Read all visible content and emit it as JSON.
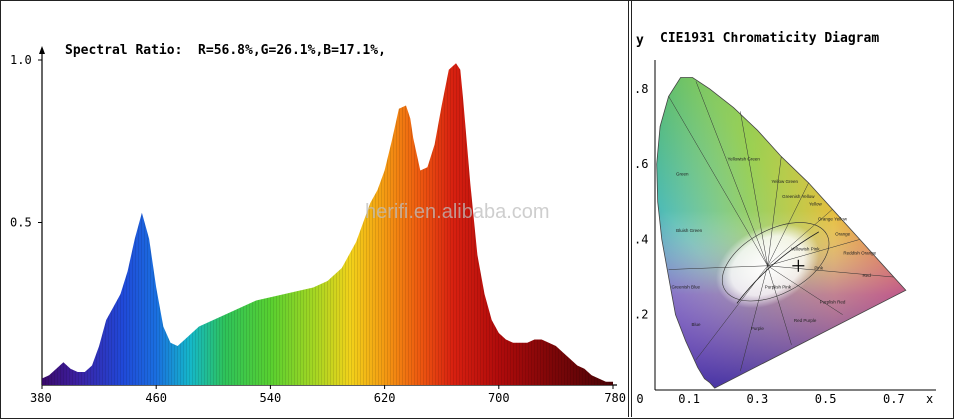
{
  "chart_data": [
    {
      "type": "area",
      "title": "",
      "annotation": "Spectral Ratio:  R=56.8%,G=26.1%,B=17.1%,",
      "xlabel": "",
      "ylabel": "",
      "xlim": [
        380,
        780
      ],
      "ylim": [
        0,
        1.0
      ],
      "x_ticks": [
        "380",
        "460",
        "540",
        "620",
        "700",
        "780"
      ],
      "y_ticks": [
        "0.5",
        "1.0"
      ],
      "fill": "wavelength-colored spectrum",
      "series": [
        {
          "x": [
            380,
            385,
            390,
            395,
            400,
            405,
            410,
            415,
            420,
            425,
            430,
            435,
            440,
            445,
            450,
            455,
            460,
            465,
            470,
            475,
            480,
            485,
            490,
            495,
            500,
            510,
            520,
            530,
            540,
            550,
            560,
            570,
            580,
            590,
            600,
            605,
            610,
            615,
            620,
            625,
            630,
            635,
            638,
            640,
            645,
            650,
            655,
            660,
            665,
            670,
            673,
            675,
            680,
            685,
            690,
            695,
            700,
            705,
            710,
            715,
            720,
            725,
            730,
            735,
            740,
            745,
            750,
            755,
            760,
            765,
            770,
            775,
            780
          ],
          "values": [
            0.02,
            0.03,
            0.05,
            0.07,
            0.05,
            0.04,
            0.04,
            0.06,
            0.12,
            0.2,
            0.24,
            0.28,
            0.35,
            0.45,
            0.53,
            0.45,
            0.3,
            0.18,
            0.13,
            0.12,
            0.14,
            0.16,
            0.18,
            0.19,
            0.2,
            0.22,
            0.24,
            0.26,
            0.27,
            0.28,
            0.29,
            0.3,
            0.32,
            0.36,
            0.44,
            0.5,
            0.56,
            0.6,
            0.66,
            0.75,
            0.85,
            0.86,
            0.82,
            0.76,
            0.66,
            0.67,
            0.74,
            0.86,
            0.97,
            0.99,
            0.97,
            0.88,
            0.62,
            0.4,
            0.28,
            0.2,
            0.16,
            0.14,
            0.13,
            0.13,
            0.13,
            0.14,
            0.14,
            0.13,
            0.12,
            0.1,
            0.08,
            0.06,
            0.05,
            0.03,
            0.02,
            0.01,
            0.01
          ]
        }
      ],
      "watermark": "herifi.en.alibaba.com"
    },
    {
      "type": "scatter",
      "title": "CIE1931 Chromaticity Diagram",
      "xlabel": "x",
      "ylabel": "y",
      "xlim": [
        0,
        0.8
      ],
      "ylim": [
        0,
        0.85
      ],
      "x_ticks": [
        "0",
        "0.1",
        "0.3",
        "0.5",
        "0.7"
      ],
      "y_ticks": [
        ".2",
        ".4",
        ".6",
        ".8"
      ],
      "region_labels": [
        "Yellowish Green",
        "Green",
        "Yellow Green",
        "Greenish Yellow",
        "Yellow",
        "Orange Yellow",
        "Orange",
        "Reddish Orange",
        "Bluish Green",
        "Yellowish Pink",
        "Pink",
        "Red",
        "Purplish Pink",
        "Greenish Blue",
        "Purplish Red",
        "Blue",
        "Purple",
        "Red Purple"
      ],
      "points": [
        {
          "x": 0.42,
          "y": 0.33
        }
      ]
    }
  ]
}
